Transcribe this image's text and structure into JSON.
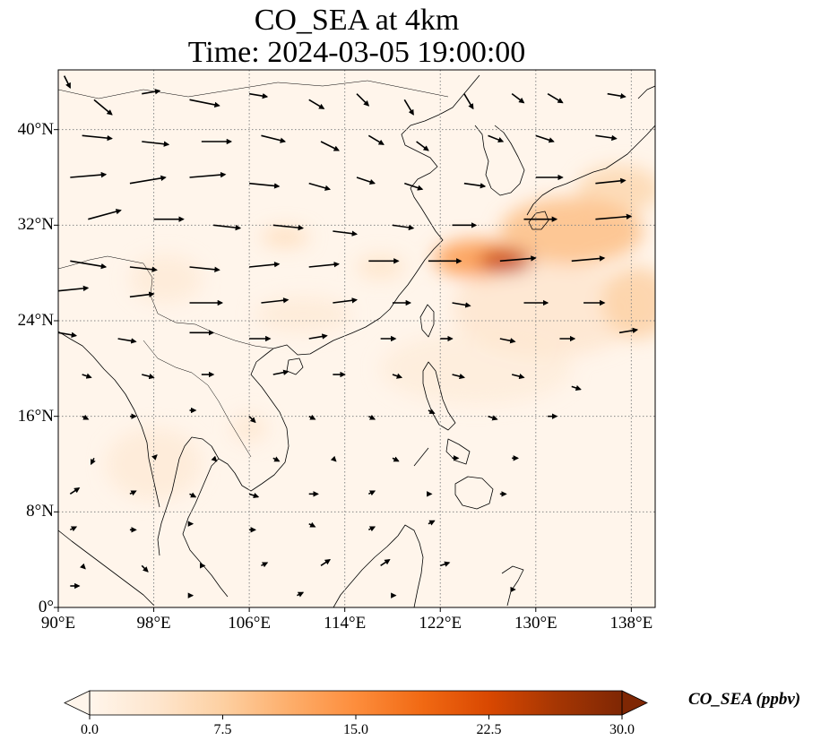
{
  "title": {
    "line1": "CO_SEA at 4km",
    "line2": "Time: 2024-03-05 19:00:00"
  },
  "map": {
    "projection": "PlateCarree",
    "extent": {
      "lon_min": 90,
      "lon_max": 140,
      "lat_min": 0,
      "lat_max": 45
    },
    "x_ticks": [
      {
        "lon": 90,
        "label": "90°E"
      },
      {
        "lon": 98,
        "label": "98°E"
      },
      {
        "lon": 106,
        "label": "106°E"
      },
      {
        "lon": 114,
        "label": "114°E"
      },
      {
        "lon": 122,
        "label": "122°E"
      },
      {
        "lon": 130,
        "label": "130°E"
      },
      {
        "lon": 138,
        "label": "138°E"
      }
    ],
    "y_ticks": [
      {
        "lat": 0,
        "label": "0°"
      },
      {
        "lat": 8,
        "label": "8°N"
      },
      {
        "lat": 16,
        "label": "16°N"
      },
      {
        "lat": 24,
        "label": "24°N"
      },
      {
        "lat": 32,
        "label": "32°N"
      },
      {
        "lat": 40,
        "label": "40°N"
      }
    ],
    "gridlines": true
  },
  "colorbar": {
    "label": "CO_SEA (ppbv)",
    "vmin": 0,
    "vmax": 30,
    "extend": "both",
    "ticks": [
      {
        "value": 0,
        "label": "0.0"
      },
      {
        "value": 7.5,
        "label": "7.5"
      },
      {
        "value": 15,
        "label": "15.0"
      },
      {
        "value": 22.5,
        "label": "22.5"
      },
      {
        "value": 30,
        "label": "30.0"
      }
    ],
    "colors": [
      "#fff5eb",
      "#fee6ce",
      "#fdd0a2",
      "#fdae6b",
      "#fd8d3c",
      "#f16913",
      "#d94801",
      "#a63603",
      "#7f2704"
    ]
  },
  "chart_data": {
    "type": "heatmap",
    "variable": "CO_SEA",
    "units": "ppbv",
    "level": "4km",
    "time": "2024-03-05 19:00:00",
    "plumes": [
      {
        "lon": 127.5,
        "lat": 29.0,
        "value": 24,
        "spread_lon": 2.2,
        "spread_lat": 1.0
      },
      {
        "lon": 125.0,
        "lat": 29.2,
        "value": 13,
        "spread_lon": 3.5,
        "spread_lat": 1.6
      },
      {
        "lon": 133.0,
        "lat": 31.5,
        "value": 9,
        "spread_lon": 6.0,
        "spread_lat": 2.8
      },
      {
        "lon": 137.0,
        "lat": 35.0,
        "value": 6,
        "spread_lon": 3.5,
        "spread_lat": 2.0
      },
      {
        "lon": 138.5,
        "lat": 25.5,
        "value": 7,
        "spread_lon": 3.0,
        "spread_lat": 3.0
      },
      {
        "lon": 131.0,
        "lat": 25.0,
        "value": 3.5,
        "spread_lon": 8.0,
        "spread_lat": 4.0
      },
      {
        "lon": 109.0,
        "lat": 31.0,
        "value": 5,
        "spread_lon": 2.0,
        "spread_lat": 0.8
      },
      {
        "lon": 117.0,
        "lat": 28.5,
        "value": 4,
        "spread_lon": 2.0,
        "spread_lat": 1.0
      },
      {
        "lon": 110.5,
        "lat": 24.5,
        "value": 2.5,
        "spread_lon": 4.0,
        "spread_lat": 1.5
      },
      {
        "lon": 106.0,
        "lat": 15.0,
        "value": 3,
        "spread_lon": 1.5,
        "spread_lat": 1.2
      },
      {
        "lon": 98.0,
        "lat": 12.0,
        "value": 2.5,
        "spread_lon": 4.0,
        "spread_lat": 3.0
      },
      {
        "lon": 99.0,
        "lat": 27.5,
        "value": 2.5,
        "spread_lon": 3.0,
        "spread_lat": 2.0
      },
      {
        "lon": 125.0,
        "lat": 20.0,
        "value": 2.0,
        "spread_lon": 8.0,
        "spread_lat": 3.0
      }
    ],
    "wind_vectors": [
      {
        "lon": 90.5,
        "lat": 44.5,
        "u": 2,
        "v": -4
      },
      {
        "lon": 93,
        "lat": 42.5,
        "u": 6,
        "v": -5
      },
      {
        "lon": 97,
        "lat": 43,
        "u": 6,
        "v": 1
      },
      {
        "lon": 101,
        "lat": 42.5,
        "u": 10,
        "v": -2
      },
      {
        "lon": 106,
        "lat": 43,
        "u": 6,
        "v": -1
      },
      {
        "lon": 111,
        "lat": 42.5,
        "u": 5,
        "v": -3
      },
      {
        "lon": 115,
        "lat": 43,
        "u": 4,
        "v": -4
      },
      {
        "lon": 119,
        "lat": 42.5,
        "u": 3,
        "v": -5
      },
      {
        "lon": 124,
        "lat": 43,
        "u": 3,
        "v": -5
      },
      {
        "lon": 128,
        "lat": 43,
        "u": 4,
        "v": -3
      },
      {
        "lon": 131,
        "lat": 43,
        "u": 5,
        "v": -3
      },
      {
        "lon": 136,
        "lat": 43,
        "u": 6,
        "v": -1
      },
      {
        "lon": 92,
        "lat": 39.5,
        "u": 10,
        "v": -1
      },
      {
        "lon": 97,
        "lat": 39,
        "u": 9,
        "v": -1
      },
      {
        "lon": 102,
        "lat": 39,
        "u": 10,
        "v": 0
      },
      {
        "lon": 107,
        "lat": 39.5,
        "u": 8,
        "v": -2
      },
      {
        "lon": 112,
        "lat": 39,
        "u": 6,
        "v": -3
      },
      {
        "lon": 116,
        "lat": 39.5,
        "u": 5,
        "v": -3
      },
      {
        "lon": 120,
        "lat": 39,
        "u": 4,
        "v": -3
      },
      {
        "lon": 126,
        "lat": 39.5,
        "u": 5,
        "v": -2
      },
      {
        "lon": 130,
        "lat": 39.5,
        "u": 6,
        "v": -2
      },
      {
        "lon": 135,
        "lat": 39.5,
        "u": 7,
        "v": -1
      },
      {
        "lon": 91,
        "lat": 36,
        "u": 12,
        "v": 1
      },
      {
        "lon": 96,
        "lat": 35.5,
        "u": 12,
        "v": 2
      },
      {
        "lon": 101,
        "lat": 36,
        "u": 12,
        "v": 1
      },
      {
        "lon": 106,
        "lat": 35.5,
        "u": 10,
        "v": -1
      },
      {
        "lon": 111,
        "lat": 35.5,
        "u": 7,
        "v": -2
      },
      {
        "lon": 115,
        "lat": 36,
        "u": 6,
        "v": -2
      },
      {
        "lon": 119,
        "lat": 35.5,
        "u": 6,
        "v": -2
      },
      {
        "lon": 124,
        "lat": 35.5,
        "u": 7,
        "v": -1
      },
      {
        "lon": 130,
        "lat": 36,
        "u": 9,
        "v": 0
      },
      {
        "lon": 135,
        "lat": 35.5,
        "u": 10,
        "v": 1
      },
      {
        "lon": 92.5,
        "lat": 32.5,
        "u": 11,
        "v": 3
      },
      {
        "lon": 98,
        "lat": 32.5,
        "u": 10,
        "v": 0
      },
      {
        "lon": 103,
        "lat": 32,
        "u": 9,
        "v": -1
      },
      {
        "lon": 108,
        "lat": 32,
        "u": 10,
        "v": -1
      },
      {
        "lon": 113,
        "lat": 31.5,
        "u": 8,
        "v": -1
      },
      {
        "lon": 118,
        "lat": 32,
        "u": 7,
        "v": -1
      },
      {
        "lon": 123,
        "lat": 32,
        "u": 8,
        "v": 0
      },
      {
        "lon": 129,
        "lat": 32.5,
        "u": 11,
        "v": 0
      },
      {
        "lon": 135,
        "lat": 32.5,
        "u": 12,
        "v": 1
      },
      {
        "lon": 91,
        "lat": 29,
        "u": 12,
        "v": -2
      },
      {
        "lon": 96,
        "lat": 28.5,
        "u": 9,
        "v": -1
      },
      {
        "lon": 101,
        "lat": 28.5,
        "u": 10,
        "v": -1
      },
      {
        "lon": 106,
        "lat": 28.5,
        "u": 10,
        "v": 1
      },
      {
        "lon": 111,
        "lat": 28.5,
        "u": 10,
        "v": 1
      },
      {
        "lon": 116,
        "lat": 29,
        "u": 10,
        "v": 0
      },
      {
        "lon": 121,
        "lat": 29,
        "u": 11,
        "v": 0
      },
      {
        "lon": 127,
        "lat": 29,
        "u": 12,
        "v": 1
      },
      {
        "lon": 133,
        "lat": 29,
        "u": 11,
        "v": 1
      },
      {
        "lon": 90,
        "lat": 26.5,
        "u": 10,
        "v": 1
      },
      {
        "lon": 96,
        "lat": 26,
        "u": 8,
        "v": 1
      },
      {
        "lon": 101,
        "lat": 25.5,
        "u": 11,
        "v": 0
      },
      {
        "lon": 107,
        "lat": 25.5,
        "u": 9,
        "v": 1
      },
      {
        "lon": 113,
        "lat": 25.5,
        "u": 8,
        "v": 1
      },
      {
        "lon": 118,
        "lat": 25.5,
        "u": 6,
        "v": 0
      },
      {
        "lon": 123,
        "lat": 25.5,
        "u": 6,
        "v": -1
      },
      {
        "lon": 129,
        "lat": 25.5,
        "u": 8,
        "v": 0
      },
      {
        "lon": 134,
        "lat": 25.5,
        "u": 7,
        "v": 0
      },
      {
        "lon": 90,
        "lat": 23,
        "u": 6,
        "v": -1
      },
      {
        "lon": 95,
        "lat": 22.5,
        "u": 6,
        "v": -1
      },
      {
        "lon": 101,
        "lat": 23,
        "u": 8,
        "v": 0
      },
      {
        "lon": 106,
        "lat": 22.5,
        "u": 7,
        "v": 0
      },
      {
        "lon": 111,
        "lat": 22.5,
        "u": 6,
        "v": 1
      },
      {
        "lon": 117,
        "lat": 22.5,
        "u": 5,
        "v": 0
      },
      {
        "lon": 122,
        "lat": 22.5,
        "u": 4,
        "v": 0
      },
      {
        "lon": 127,
        "lat": 22.5,
        "u": 5,
        "v": -1
      },
      {
        "lon": 132,
        "lat": 22.5,
        "u": 5,
        "v": 0
      },
      {
        "lon": 137,
        "lat": 23,
        "u": 6,
        "v": 1
      },
      {
        "lon": 92,
        "lat": 19.5,
        "u": 3,
        "v": -1
      },
      {
        "lon": 97,
        "lat": 19.5,
        "u": 4,
        "v": -1
      },
      {
        "lon": 102,
        "lat": 19.5,
        "u": 4,
        "v": 0
      },
      {
        "lon": 108,
        "lat": 19.5,
        "u": 5,
        "v": 1
      },
      {
        "lon": 113,
        "lat": 19.5,
        "u": 4,
        "v": 0
      },
      {
        "lon": 118,
        "lat": 19.5,
        "u": 3,
        "v": -1
      },
      {
        "lon": 123,
        "lat": 19.5,
        "u": 4,
        "v": -1
      },
      {
        "lon": 128,
        "lat": 19.5,
        "u": 4,
        "v": -1
      },
      {
        "lon": 133,
        "lat": 18.5,
        "u": 3,
        "v": -1
      },
      {
        "lon": 92,
        "lat": 16,
        "u": 2,
        "v": -1
      },
      {
        "lon": 96,
        "lat": 16,
        "u": 2,
        "v": 0
      },
      {
        "lon": 101,
        "lat": 16.5,
        "u": 2,
        "v": 0
      },
      {
        "lon": 106,
        "lat": 16,
        "u": 2,
        "v": -2
      },
      {
        "lon": 111,
        "lat": 16,
        "u": 2,
        "v": -1
      },
      {
        "lon": 116,
        "lat": 16,
        "u": 2,
        "v": -1
      },
      {
        "lon": 121,
        "lat": 16.5,
        "u": 2,
        "v": -1
      },
      {
        "lon": 126,
        "lat": 16,
        "u": 3,
        "v": -1
      },
      {
        "lon": 131,
        "lat": 16,
        "u": 3,
        "v": 0
      },
      {
        "lon": 93,
        "lat": 12.5,
        "u": -1,
        "v": -2
      },
      {
        "lon": 98,
        "lat": 12.5,
        "u": 1,
        "v": 1
      },
      {
        "lon": 103,
        "lat": 12.5,
        "u": 1,
        "v": -1
      },
      {
        "lon": 108,
        "lat": 12.5,
        "u": 2,
        "v": -1
      },
      {
        "lon": 113,
        "lat": 12.5,
        "u": 1,
        "v": -1
      },
      {
        "lon": 118,
        "lat": 12.5,
        "u": 2,
        "v": -1
      },
      {
        "lon": 123,
        "lat": 12.5,
        "u": 2,
        "v": 0
      },
      {
        "lon": 128,
        "lat": 12.5,
        "u": 2,
        "v": 0
      },
      {
        "lon": 91,
        "lat": 9.5,
        "u": 3,
        "v": 2
      },
      {
        "lon": 96,
        "lat": 9.5,
        "u": 2,
        "v": 1
      },
      {
        "lon": 101,
        "lat": 9.5,
        "u": 2,
        "v": -1
      },
      {
        "lon": 106,
        "lat": 9.5,
        "u": 3,
        "v": -1
      },
      {
        "lon": 111,
        "lat": 9.5,
        "u": 3,
        "v": 0
      },
      {
        "lon": 116,
        "lat": 9.5,
        "u": 2,
        "v": 1
      },
      {
        "lon": 121,
        "lat": 9.5,
        "u": 1,
        "v": 0
      },
      {
        "lon": 127,
        "lat": 9.5,
        "u": 2,
        "v": 0
      },
      {
        "lon": 91,
        "lat": 6.5,
        "u": 2,
        "v": 1
      },
      {
        "lon": 96,
        "lat": 6.5,
        "u": 2,
        "v": 0
      },
      {
        "lon": 101,
        "lat": 7,
        "u": 1,
        "v": 0
      },
      {
        "lon": 106,
        "lat": 6.5,
        "u": 2,
        "v": 0
      },
      {
        "lon": 111,
        "lat": 7,
        "u": 2,
        "v": -1
      },
      {
        "lon": 116,
        "lat": 6.5,
        "u": 2,
        "v": 1
      },
      {
        "lon": 121,
        "lat": 7,
        "u": 2,
        "v": 1
      },
      {
        "lon": 92,
        "lat": 3.5,
        "u": 1,
        "v": -1
      },
      {
        "lon": 97,
        "lat": 3.5,
        "u": 2,
        "v": -2
      },
      {
        "lon": 102,
        "lat": 3.5,
        "u": 1,
        "v": 0
      },
      {
        "lon": 107,
        "lat": 3.5,
        "u": 2,
        "v": 1
      },
      {
        "lon": 112,
        "lat": 3.5,
        "u": 3,
        "v": 2
      },
      {
        "lon": 117,
        "lat": 3.5,
        "u": 3,
        "v": 2
      },
      {
        "lon": 122,
        "lat": 3.5,
        "u": 3,
        "v": 1
      },
      {
        "lon": 91,
        "lat": 1.8,
        "u": 3,
        "v": 0
      },
      {
        "lon": 101,
        "lat": 1,
        "u": 1,
        "v": 0
      },
      {
        "lon": 110,
        "lat": 1,
        "u": 2,
        "v": 1
      },
      {
        "lon": 118,
        "lat": 1,
        "u": 1,
        "v": 0
      },
      {
        "lon": 128,
        "lat": 1.5,
        "u": 1,
        "v": 0
      }
    ]
  }
}
